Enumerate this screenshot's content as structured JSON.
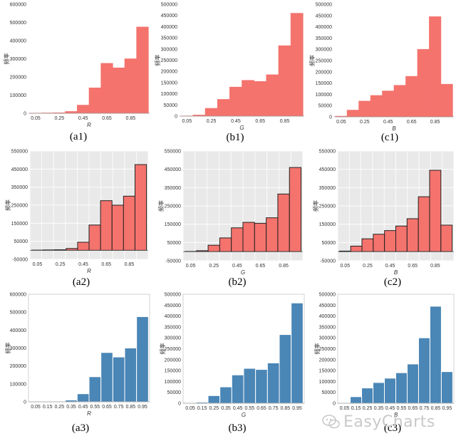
{
  "watermark": "EasyCharts",
  "styles": {
    "red": {
      "fill": "#f4736d",
      "stroke": "#f4736d",
      "bg": "#ffffff",
      "grid": false,
      "stroke_width": 0.6
    },
    "red_framed": {
      "fill": "#f4736d",
      "stroke": "#222222",
      "bg": "#e9e9e9",
      "grid": true,
      "stroke_width": 1
    },
    "blue": {
      "fill": "#4a86b6",
      "stroke": "#ffffff",
      "bg": "#ffffff",
      "grid": false,
      "stroke_width": 1
    }
  },
  "chart_data": [
    {
      "id": "a1",
      "caption": "(a1)",
      "type": "bar",
      "style": "red",
      "xlabel": "R",
      "ylabel": "频率",
      "categories": [
        0.05,
        0.15,
        0.25,
        0.35,
        0.45,
        0.55,
        0.65,
        0.75,
        0.85,
        0.95
      ],
      "values": [
        1000,
        2000,
        3000,
        10000,
        45000,
        140000,
        275000,
        250000,
        300000,
        475000
      ],
      "xticks": [
        "0.05",
        "0.25",
        "0.45",
        "0.65",
        "0.85"
      ],
      "yticks": [
        "0",
        "100000",
        "200000",
        "300000",
        "400000",
        "500000",
        "600000"
      ],
      "ylim": [
        0,
        600000
      ]
    },
    {
      "id": "b1",
      "caption": "(b1)",
      "type": "bar",
      "style": "red",
      "xlabel": "G",
      "ylabel": "频率",
      "categories": [
        0.05,
        0.15,
        0.25,
        0.35,
        0.45,
        0.55,
        0.65,
        0.75,
        0.85,
        0.95
      ],
      "values": [
        1000,
        5000,
        35000,
        75000,
        130000,
        160000,
        155000,
        185000,
        315000,
        460000
      ],
      "xticks": [
        "0.05",
        "0.25",
        "0.45",
        "0.65",
        "0.85"
      ],
      "yticks": [
        "0",
        "50000",
        "100000",
        "150000",
        "200000",
        "250000",
        "300000",
        "350000",
        "400000",
        "450000",
        "500000"
      ],
      "ylim": [
        0,
        500000
      ]
    },
    {
      "id": "c1",
      "caption": "(c1)",
      "type": "bar",
      "style": "red",
      "xlabel": "B",
      "ylabel": "频率",
      "categories": [
        0.05,
        0.15,
        0.25,
        0.35,
        0.45,
        0.55,
        0.65,
        0.75,
        0.85,
        0.95
      ],
      "values": [
        3000,
        30000,
        70000,
        95000,
        115000,
        140000,
        180000,
        300000,
        445000,
        145000
      ],
      "xticks": [
        "0.05",
        "0.25",
        "0.45",
        "0.65",
        "0.85"
      ],
      "yticks": [
        "0",
        "50000",
        "100000",
        "150000",
        "200000",
        "250000",
        "300000",
        "350000",
        "400000",
        "450000",
        "500000"
      ],
      "ylim": [
        0,
        500000
      ]
    },
    {
      "id": "a2",
      "caption": "(a2)",
      "type": "bar",
      "style": "red_framed",
      "xlabel": "R",
      "ylabel": "频率",
      "categories": [
        0.05,
        0.15,
        0.25,
        0.35,
        0.45,
        0.55,
        0.65,
        0.75,
        0.85,
        0.95
      ],
      "values": [
        1000,
        2000,
        3000,
        10000,
        45000,
        140000,
        275000,
        250000,
        300000,
        475000
      ],
      "xticks": [
        "0.05",
        "0.25",
        "0.45",
        "0.65",
        "0.85"
      ],
      "yticks": [
        "-50000",
        "50000",
        "150000",
        "250000",
        "350000",
        "450000",
        "550000"
      ],
      "ylim": [
        -50000,
        550000
      ]
    },
    {
      "id": "b2",
      "caption": "(b2)",
      "type": "bar",
      "style": "red_framed",
      "xlabel": "G",
      "ylabel": "频率",
      "categories": [
        0.05,
        0.15,
        0.25,
        0.35,
        0.45,
        0.55,
        0.65,
        0.75,
        0.85,
        0.95
      ],
      "values": [
        1000,
        5000,
        35000,
        75000,
        130000,
        160000,
        155000,
        185000,
        315000,
        460000
      ],
      "xticks": [
        "0.05",
        "0.25",
        "0.45",
        "0.65",
        "0.85"
      ],
      "yticks": [
        "-50000",
        "50000",
        "150000",
        "250000",
        "350000",
        "450000",
        "550000"
      ],
      "ylim": [
        -50000,
        550000
      ]
    },
    {
      "id": "c2",
      "caption": "(c2)",
      "type": "bar",
      "style": "red_framed",
      "xlabel": "B",
      "ylabel": "频率",
      "categories": [
        0.05,
        0.15,
        0.25,
        0.35,
        0.45,
        0.55,
        0.65,
        0.75,
        0.85,
        0.95
      ],
      "values": [
        3000,
        30000,
        70000,
        95000,
        115000,
        140000,
        180000,
        300000,
        445000,
        145000
      ],
      "xticks": [
        "0.05",
        "0.25",
        "0.45",
        "0.65",
        "0.85"
      ],
      "yticks": [
        "-50000",
        "50000",
        "150000",
        "250000",
        "350000",
        "450000",
        "550000"
      ],
      "ylim": [
        -50000,
        550000
      ]
    },
    {
      "id": "a3",
      "caption": "(a3)",
      "type": "bar",
      "style": "blue",
      "xlabel": "R",
      "ylabel": "频率",
      "categories": [
        0.05,
        0.15,
        0.25,
        0.35,
        0.45,
        0.55,
        0.65,
        0.75,
        0.85,
        0.95
      ],
      "values": [
        1000,
        2000,
        3000,
        10000,
        45000,
        140000,
        275000,
        250000,
        300000,
        475000
      ],
      "xticks": [
        "0.05",
        "0.15",
        "0.25",
        "0.35",
        "0.45",
        "0.55",
        "0.65",
        "0.75",
        "0.85",
        "0.95"
      ],
      "yticks": [
        "0",
        "100000",
        "200000",
        "300000",
        "400000",
        "500000",
        "600000"
      ],
      "ylim": [
        0,
        600000
      ]
    },
    {
      "id": "b3",
      "caption": "(b3)",
      "type": "bar",
      "style": "blue",
      "xlabel": "G",
      "ylabel": "频率",
      "categories": [
        0.05,
        0.15,
        0.25,
        0.35,
        0.45,
        0.55,
        0.65,
        0.75,
        0.85,
        0.95
      ],
      "values": [
        1000,
        5000,
        35000,
        75000,
        130000,
        160000,
        155000,
        185000,
        315000,
        460000
      ],
      "xticks": [
        "0.05",
        "0.15",
        "0.25",
        "0.35",
        "0.45",
        "0.55",
        "0.65",
        "0.75",
        "0.85",
        "0.95"
      ],
      "yticks": [
        "0",
        "50000",
        "100000",
        "150000",
        "200000",
        "250000",
        "300000",
        "350000",
        "400000",
        "450000",
        "500000"
      ],
      "ylim": [
        0,
        500000
      ]
    },
    {
      "id": "c3",
      "caption": "(c3)",
      "type": "bar",
      "style": "blue",
      "xlabel": "B",
      "ylabel": "频率",
      "categories": [
        0.05,
        0.15,
        0.25,
        0.35,
        0.45,
        0.55,
        0.65,
        0.75,
        0.85,
        0.95
      ],
      "values": [
        3000,
        30000,
        70000,
        95000,
        115000,
        140000,
        180000,
        300000,
        445000,
        145000
      ],
      "xticks": [
        "0.05",
        "0.15",
        "0.25",
        "0.35",
        "0.45",
        "0.55",
        "0.65",
        "0.75",
        "0.85",
        "0.95"
      ],
      "yticks": [
        "0",
        "50000",
        "100000",
        "150000",
        "200000",
        "250000",
        "300000",
        "350000",
        "400000",
        "450000",
        "500000"
      ],
      "ylim": [
        0,
        500000
      ]
    }
  ]
}
